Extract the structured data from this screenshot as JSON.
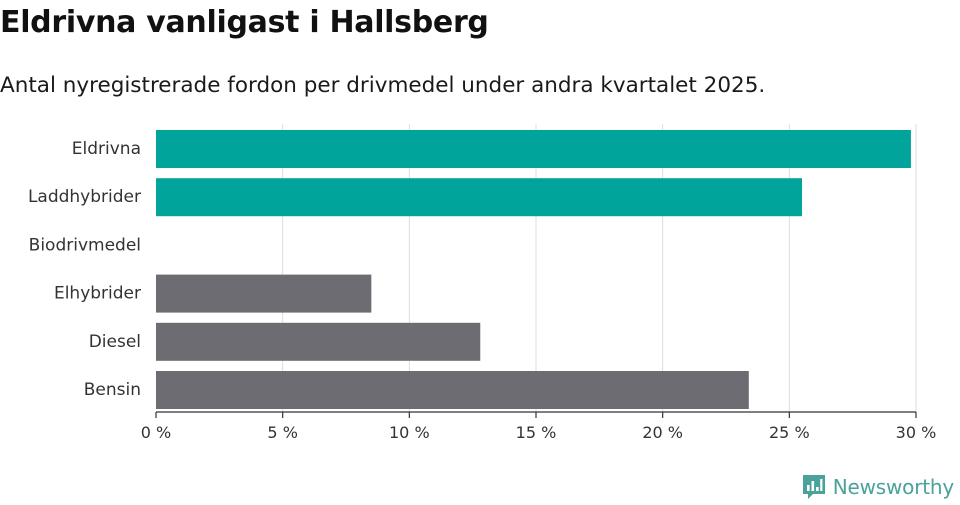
{
  "title": "Eldrivna vanligast i Hallsberg",
  "subtitle": "Antal nyregistrerade fordon per drivmedel under andra kvartalet 2025.",
  "brand": {
    "name": "Newsworthy",
    "icon": "newsworthy-logo-icon",
    "color": "#4aa29a"
  },
  "chart_data": {
    "type": "bar",
    "orientation": "horizontal",
    "categories": [
      "Eldrivna",
      "Laddhybrider",
      "Biodrivmedel",
      "Elhybrider",
      "Diesel",
      "Bensin"
    ],
    "values": [
      29.8,
      25.5,
      0,
      8.5,
      12.8,
      23.4
    ],
    "colors": [
      "#00a49a",
      "#00a49a",
      "#00a49a",
      "#6d6c72",
      "#6d6c72",
      "#6d6c72"
    ],
    "xlim": [
      0,
      30
    ],
    "xticks": [
      0,
      5,
      10,
      15,
      20,
      25,
      30
    ],
    "xtick_labels": [
      "0 %",
      "5 %",
      "10 %",
      "15 %",
      "20 %",
      "25 %",
      "30 %"
    ],
    "grid": true,
    "xlabel": "",
    "ylabel": ""
  }
}
